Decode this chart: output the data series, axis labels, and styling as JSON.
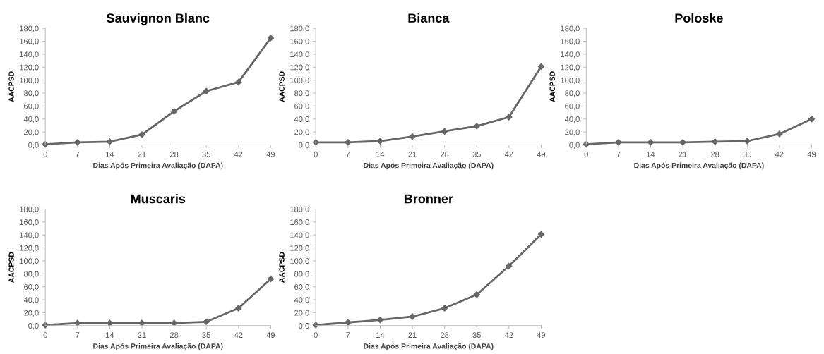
{
  "chart_data": [
    {
      "type": "line",
      "title": "Sauvignon Blanc",
      "xlabel": "Dias Após Primeira Avaliação (DAPA)",
      "ylabel": "AACPSD",
      "categories": [
        "0",
        "7",
        "14",
        "21",
        "28",
        "35",
        "42",
        "49"
      ],
      "marker": "diamond",
      "series": [
        {
          "color": "#666666",
          "values": [
            1,
            4,
            5,
            16,
            52,
            83,
            97,
            165
          ]
        }
      ],
      "ylim": [
        0,
        180
      ],
      "yticks": [
        {
          "value": 0,
          "label": "0,0"
        },
        {
          "value": 20,
          "label": "20,0"
        },
        {
          "value": 40,
          "label": "40,0"
        },
        {
          "value": 60,
          "label": "60,0"
        },
        {
          "value": 80,
          "label": "80,0"
        },
        {
          "value": 100,
          "label": "100,0"
        },
        {
          "value": 120,
          "label": "120,0"
        },
        {
          "value": 140,
          "label": "140,0"
        },
        {
          "value": 160,
          "label": "160,0"
        },
        {
          "value": 180,
          "label": "180,0"
        }
      ]
    },
    {
      "type": "line",
      "title": "Bianca",
      "xlabel": "Dias Após Primeira Avaliação (DAPA)",
      "ylabel": "AACPSD",
      "categories": [
        "0",
        "7",
        "14",
        "21",
        "28",
        "35",
        "42",
        "49"
      ],
      "marker": "diamond",
      "series": [
        {
          "color": "#666666",
          "values": [
            4,
            4,
            6,
            13,
            21,
            29,
            43,
            121
          ]
        }
      ],
      "ylim": [
        0,
        180
      ],
      "yticks": [
        {
          "value": 0,
          "label": "0,0"
        },
        {
          "value": 20,
          "label": "20,0"
        },
        {
          "value": 40,
          "label": "40,0"
        },
        {
          "value": 60,
          "label": "60,0"
        },
        {
          "value": 80,
          "label": "80,0"
        },
        {
          "value": 100,
          "label": "100,0"
        },
        {
          "value": 120,
          "label": "120,0"
        },
        {
          "value": 140,
          "label": "140,0"
        },
        {
          "value": 160,
          "label": "160,0"
        },
        {
          "value": 180,
          "label": "180,0"
        }
      ]
    },
    {
      "type": "line",
      "title": "Poloske",
      "xlabel": "Dias Após Primeira Avaliação (DAPA)",
      "ylabel": "AACPSD",
      "categories": [
        "0",
        "7",
        "14",
        "21",
        "28",
        "35",
        "42",
        "49"
      ],
      "marker": "diamond",
      "series": [
        {
          "color": "#666666",
          "values": [
            1,
            4,
            4,
            4,
            5,
            6,
            17,
            40
          ]
        }
      ],
      "ylim": [
        0,
        180
      ],
      "yticks": [
        {
          "value": 0,
          "label": "0,0"
        },
        {
          "value": 20,
          "label": "20,0"
        },
        {
          "value": 40,
          "label": "40,0"
        },
        {
          "value": 60,
          "label": "60,0"
        },
        {
          "value": 80,
          "label": "80,0"
        },
        {
          "value": 100,
          "label": "100,0"
        },
        {
          "value": 120,
          "label": "120,0"
        },
        {
          "value": 140,
          "label": "140,0"
        },
        {
          "value": 160,
          "label": "160,0"
        },
        {
          "value": 180,
          "label": "180,0"
        }
      ]
    },
    {
      "type": "line",
      "title": "Muscaris",
      "xlabel": "Dias Após Primeira Avaliação (DAPA)",
      "ylabel": "AACPSD",
      "categories": [
        "0",
        "7",
        "14",
        "21",
        "28",
        "35",
        "42",
        "49"
      ],
      "marker": "diamond",
      "series": [
        {
          "color": "#666666",
          "values": [
            1,
            4,
            4,
            4,
            4,
            6,
            27,
            72
          ]
        }
      ],
      "ylim": [
        0,
        180
      ],
      "yticks": [
        {
          "value": 0,
          "label": "0,0"
        },
        {
          "value": 20,
          "label": "20,0"
        },
        {
          "value": 40,
          "label": "40,0"
        },
        {
          "value": 60,
          "label": "60,0"
        },
        {
          "value": 80,
          "label": "80,0"
        },
        {
          "value": 100,
          "label": "100,0"
        },
        {
          "value": 120,
          "label": "120,0"
        },
        {
          "value": 140,
          "label": "140,0"
        },
        {
          "value": 160,
          "label": "160,0"
        },
        {
          "value": 180,
          "label": "180,0"
        }
      ]
    },
    {
      "type": "line",
      "title": "Bronner",
      "xlabel": "Dias Após Primeira Avaliação (DAPA)",
      "ylabel": "AACPSD",
      "categories": [
        "0",
        "7",
        "14",
        "21",
        "28",
        "35",
        "42",
        "49"
      ],
      "marker": "diamond",
      "series": [
        {
          "color": "#666666",
          "values": [
            1,
            5,
            9,
            14,
            27,
            48,
            92,
            141
          ]
        }
      ],
      "ylim": [
        0,
        180
      ],
      "yticks": [
        {
          "value": 0,
          "label": "0,0"
        },
        {
          "value": 20,
          "label": "20,0"
        },
        {
          "value": 40,
          "label": "40,0"
        },
        {
          "value": 60,
          "label": "60,0"
        },
        {
          "value": 80,
          "label": "80,0"
        },
        {
          "value": 100,
          "label": "100,0"
        },
        {
          "value": 120,
          "label": "120,0"
        },
        {
          "value": 140,
          "label": "140,0"
        },
        {
          "value": 160,
          "label": "160,0"
        },
        {
          "value": 180,
          "label": "180,0"
        }
      ]
    }
  ]
}
